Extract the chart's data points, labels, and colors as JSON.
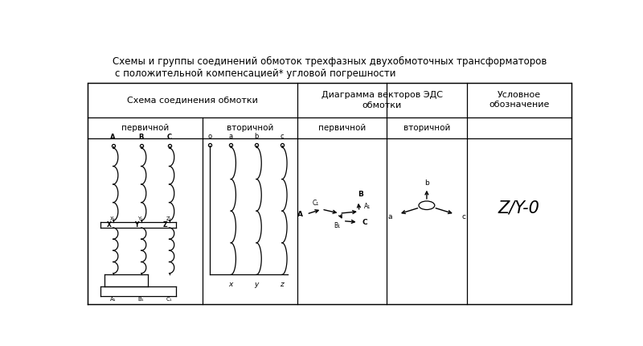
{
  "title_line1": "Схемы и группы соединений обмоток трехфазных двухобмоточных трансформаторов",
  "title_line2": "с положительной компенсацией* угловой погрешности",
  "header1_schema": "Схема соединения обмотки",
  "header1_diag": "Диаграмма векторов ЭДС",
  "header1_diag2": "обмотки",
  "header1_usl1": "Условное",
  "header1_usl2": "обозначение",
  "sub_primary": "первичной",
  "sub_secondary": "вторичной",
  "symbol": "Z/Y-0",
  "bg_color": "#ffffff",
  "line_color": "#000000",
  "font_color": "#000000",
  "TL": 0.015,
  "TR": 0.985,
  "TT": 0.845,
  "TB": 0.015,
  "C1": 0.245,
  "C2": 0.435,
  "C3": 0.615,
  "C4": 0.775,
  "R1": 0.715,
  "R2": 0.635
}
